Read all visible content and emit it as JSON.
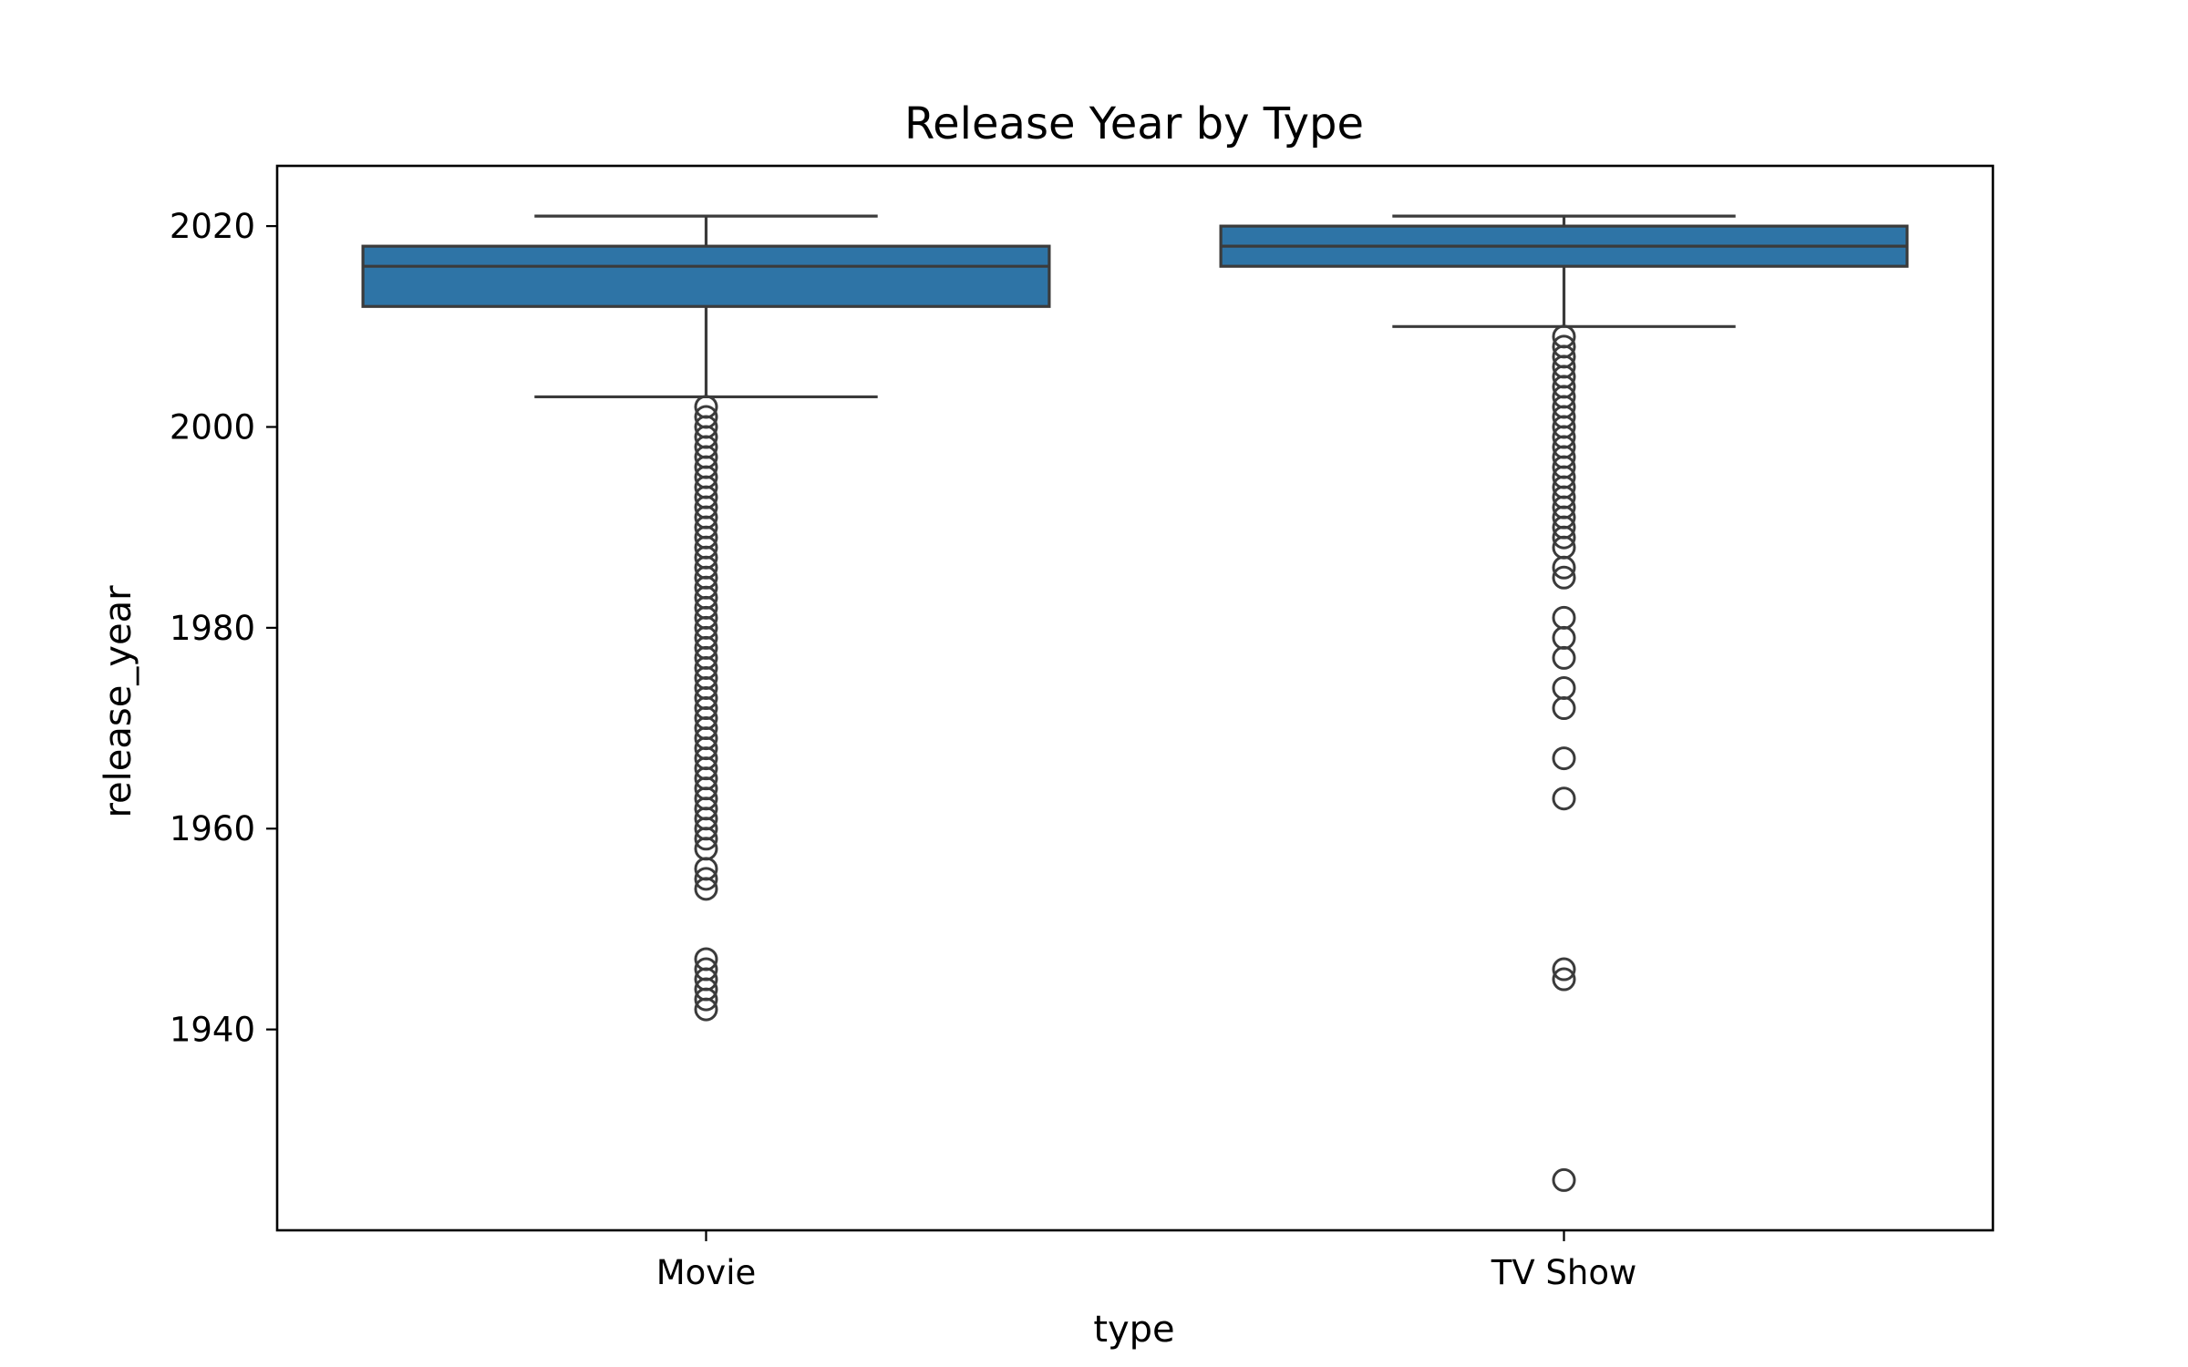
{
  "chart_data": {
    "type": "box",
    "title": "Release Year by Type",
    "xlabel": "type",
    "ylabel": "release_year",
    "categories": [
      "Movie",
      "TV Show"
    ],
    "ylim": [
      1920,
      2026
    ],
    "yticks": [
      1940,
      1960,
      1980,
      2000,
      2020
    ],
    "box_color": "#2e74a6",
    "line_color": "#3b3b3b",
    "boxes": [
      {
        "category": "Movie",
        "whisker_low": 2003,
        "q1": 2012,
        "median": 2016,
        "q3": 2018,
        "whisker_high": 2021,
        "outliers": [
          1942,
          1943,
          1944,
          1945,
          1946,
          1947,
          1954,
          1955,
          1956,
          1958,
          1959,
          1960,
          1961,
          1962,
          1963,
          1964,
          1965,
          1966,
          1967,
          1968,
          1969,
          1970,
          1971,
          1972,
          1973,
          1974,
          1975,
          1976,
          1977,
          1978,
          1979,
          1980,
          1981,
          1982,
          1983,
          1984,
          1985,
          1986,
          1987,
          1988,
          1989,
          1990,
          1991,
          1992,
          1993,
          1994,
          1995,
          1996,
          1997,
          1998,
          1999,
          2000,
          2001,
          2002
        ]
      },
      {
        "category": "TV Show",
        "whisker_low": 2010,
        "q1": 2016,
        "median": 2018,
        "q3": 2020,
        "whisker_high": 2021,
        "outliers": [
          1925,
          1945,
          1946,
          1963,
          1967,
          1972,
          1974,
          1977,
          1979,
          1981,
          1985,
          1986,
          1988,
          1989,
          1990,
          1991,
          1992,
          1993,
          1994,
          1995,
          1996,
          1997,
          1998,
          1999,
          2000,
          2001,
          2002,
          2003,
          2004,
          2005,
          2006,
          2007,
          2008,
          2009
        ]
      }
    ]
  }
}
